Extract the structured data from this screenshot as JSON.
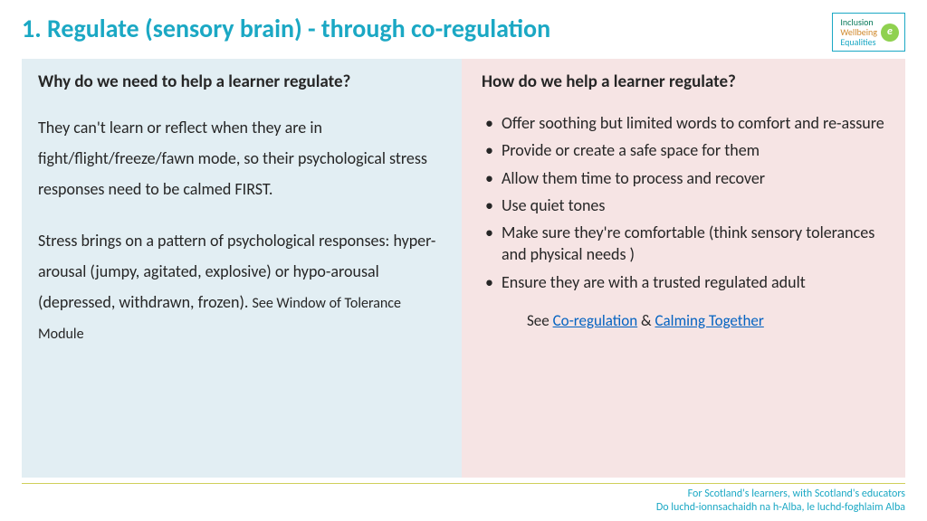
{
  "title": "1. Regulate (sensory brain) - through co-regulation",
  "logo": {
    "line1": "Inclusion",
    "line2": "Wellbeing",
    "line3": "Equalities",
    "mark": "e"
  },
  "left": {
    "heading": "Why do we need to help a learner regulate?",
    "para1": "They can't learn or reflect when they are in fight/flight/freeze/fawn mode, so their psychological stress responses need to be calmed FIRST.",
    "para2_main": "Stress brings on a pattern of psychological responses: hyper-arousal (jumpy, agitated, explosive) or hypo-arousal (depressed, withdrawn, frozen). ",
    "para2_note": "See Window of Tolerance Module"
  },
  "right": {
    "heading": "How do we help a learner regulate?",
    "bullets": [
      "Offer soothing but limited words to comfort and re-assure",
      "Provide or create a safe space for them",
      "Allow them time to process and recover",
      "Use quiet tones",
      "Make sure they're comfortable (think sensory tolerances and physical needs )",
      "Ensure they are with a trusted regulated adult"
    ],
    "see_prefix": "See ",
    "link1": "Co-regulation",
    "amp": " & ",
    "link2": "Calming Together"
  },
  "footer": {
    "line1": "For Scotland's learners, with Scotland's educators",
    "line2": "Do luchd-ionnsachaidh na h-Alba, le luchd-foghlaim Alba"
  },
  "colors": {
    "title": "#1ba8c4",
    "left_bg": "#e2eef3",
    "right_bg": "#f6e4e4",
    "link": "#0563c1",
    "footer_rule": "#cfcf5a"
  }
}
